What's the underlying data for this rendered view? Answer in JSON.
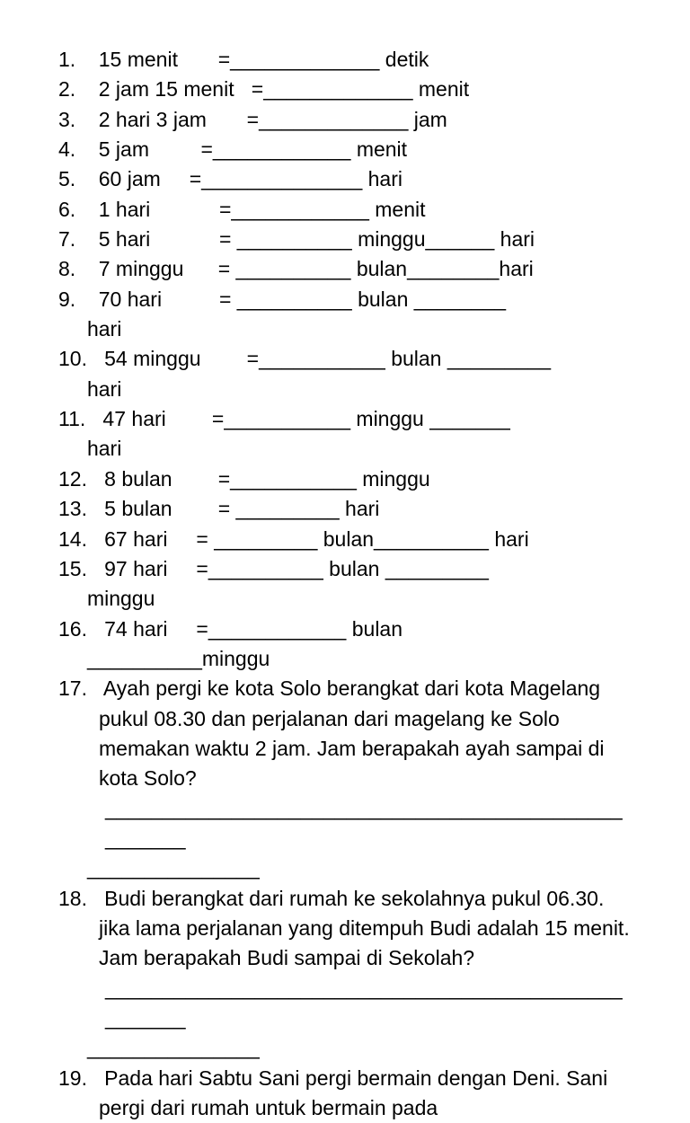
{
  "worksheet": {
    "background_color": "#ffffff",
    "text_color": "#000000",
    "font_size": 23,
    "font_family": "Verdana, Geneva, sans-serif",
    "line_height": 1.45,
    "problems": [
      {
        "num": "1.",
        "left": "15 menit",
        "eq_pad": "       ",
        "right": "_____________ detik"
      },
      {
        "num": "2.",
        "left": "2 jam 15 menit",
        "eq_pad": "   ",
        "right": "_____________ menit"
      },
      {
        "num": "3.",
        "left": "2 hari 3 jam",
        "eq_pad": "       ",
        "right": "_____________ jam"
      },
      {
        "num": "4.",
        "left": "5 jam",
        "eq_pad": "         ",
        "right": "____________ menit"
      },
      {
        "num": "5.",
        "left": "60 jam",
        "eq_pad": "     ",
        "right": "______________ hari"
      },
      {
        "num": "6.",
        "left": "1 hari",
        "eq_pad": "            ",
        "right": "____________ menit"
      },
      {
        "num": "7.",
        "left": "5 hari",
        "eq_pad": "            ",
        "right": " __________ minggu______ hari"
      },
      {
        "num": "8.",
        "left": "7 minggu",
        "eq_pad": "      ",
        "right": " __________ bulan________hari"
      },
      {
        "num": "9.",
        "left": "70 hari",
        "eq_pad": "          ",
        "right": " __________ bulan ________",
        "wrap": "hari"
      },
      {
        "num": "10.",
        "left": "54 minggu",
        "eq_pad": "        ",
        "right": "___________ bulan _________",
        "wrap": "hari"
      },
      {
        "num": "11.",
        "left": "47 hari",
        "eq_pad": "        ",
        "right": "___________ minggu _______",
        "wrap": "hari"
      },
      {
        "num": "12.",
        "left": "8 bulan",
        "eq_pad": "        ",
        "right": "___________ minggu"
      },
      {
        "num": "13.",
        "left": "5 bulan",
        "eq_pad": "        ",
        "right": " _________ hari"
      },
      {
        "num": "14.",
        "left": "67 hari",
        "eq_pad": "     ",
        "right": " _________ bulan__________ hari"
      },
      {
        "num": "15.",
        "left": "97 hari",
        "eq_pad": "     ",
        "right": "__________ bulan _________",
        "wrap": "minggu"
      },
      {
        "num": "16.",
        "left": "74 hari",
        "eq_pad": "     ",
        "right": "____________ bulan",
        "wrap": "__________minggu"
      }
    ],
    "word_problems": [
      {
        "num": "17.",
        "text": "Ayah pergi ke kota Solo berangkat dari kota Magelang pukul 08.30 dan perjalanan dari magelang ke Solo memakan waktu 2 jam. Jam berapakah ayah sampai di kota Solo?",
        "answer_line": "____________________________________________________",
        "answer_wrap": "_______________"
      },
      {
        "num": "18.",
        "text": "Budi berangkat dari rumah ke sekolahnya pukul 06.30. jika lama perjalanan yang ditempuh Budi adalah 15 menit. Jam berapakah Budi sampai di Sekolah?",
        "answer_line": "____________________________________________________",
        "answer_wrap": "_______________"
      },
      {
        "num": "19.",
        "text": "Pada hari Sabtu Sani pergi bermain dengan Deni. Sani pergi dari rumah untuk bermain pada"
      }
    ]
  }
}
